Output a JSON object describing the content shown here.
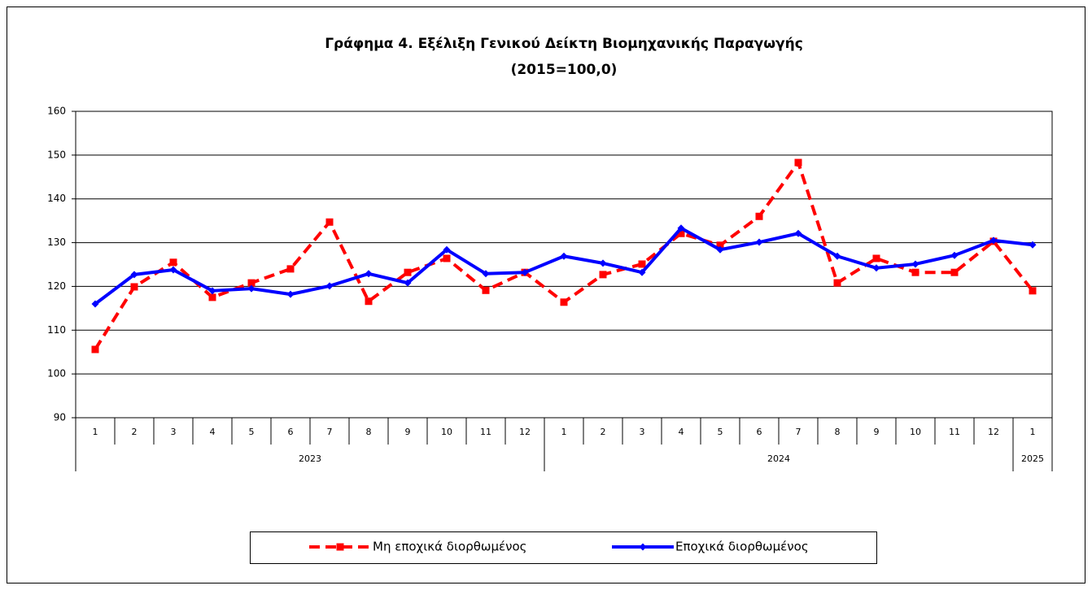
{
  "chart_data": {
    "type": "line",
    "title": "Γράφημα 4. Εξέλιξη Γενικού Δείκτη Βιομηχανικής Παραγωγής",
    "subtitle": "(2015=100,0)",
    "categories": [
      "1",
      "2",
      "3",
      "4",
      "5",
      "6",
      "7",
      "8",
      "9",
      "10",
      "11",
      "12",
      "1",
      "2",
      "3",
      "4",
      "5",
      "6",
      "7",
      "8",
      "9",
      "10",
      "11",
      "12",
      "1"
    ],
    "category_groups": [
      {
        "label": "2023",
        "count": 12
      },
      {
        "label": "2024",
        "count": 12
      },
      {
        "label": "2025",
        "count": 1
      }
    ],
    "series": [
      {
        "name": "Μη εποχικά διορθωμένος",
        "color": "#ff0000",
        "dashed": true,
        "marker": "square",
        "values": [
          105.6,
          119.9,
          125.5,
          117.5,
          120.8,
          124.0,
          134.7,
          116.6,
          123.2,
          126.4,
          119.1,
          123.2,
          116.4,
          122.7,
          125.1,
          132.1,
          129.4,
          136.0,
          148.3,
          120.8,
          126.4,
          123.2,
          123.2,
          130.3,
          119.0
        ]
      },
      {
        "name": "Εποχικά διορθωμένος",
        "color": "#0000ff",
        "dashed": false,
        "marker": "diamond",
        "values": [
          116.0,
          122.7,
          123.8,
          119.0,
          119.5,
          118.2,
          120.1,
          122.9,
          120.8,
          128.4,
          122.9,
          123.2,
          126.9,
          125.3,
          123.2,
          133.3,
          128.4,
          130.1,
          132.1,
          126.9,
          124.2,
          125.1,
          127.1,
          130.5,
          129.5
        ]
      }
    ],
    "ylim": [
      90,
      160
    ],
    "yticks": [
      90,
      100,
      110,
      120,
      130,
      140,
      150,
      160
    ],
    "grid": true
  }
}
